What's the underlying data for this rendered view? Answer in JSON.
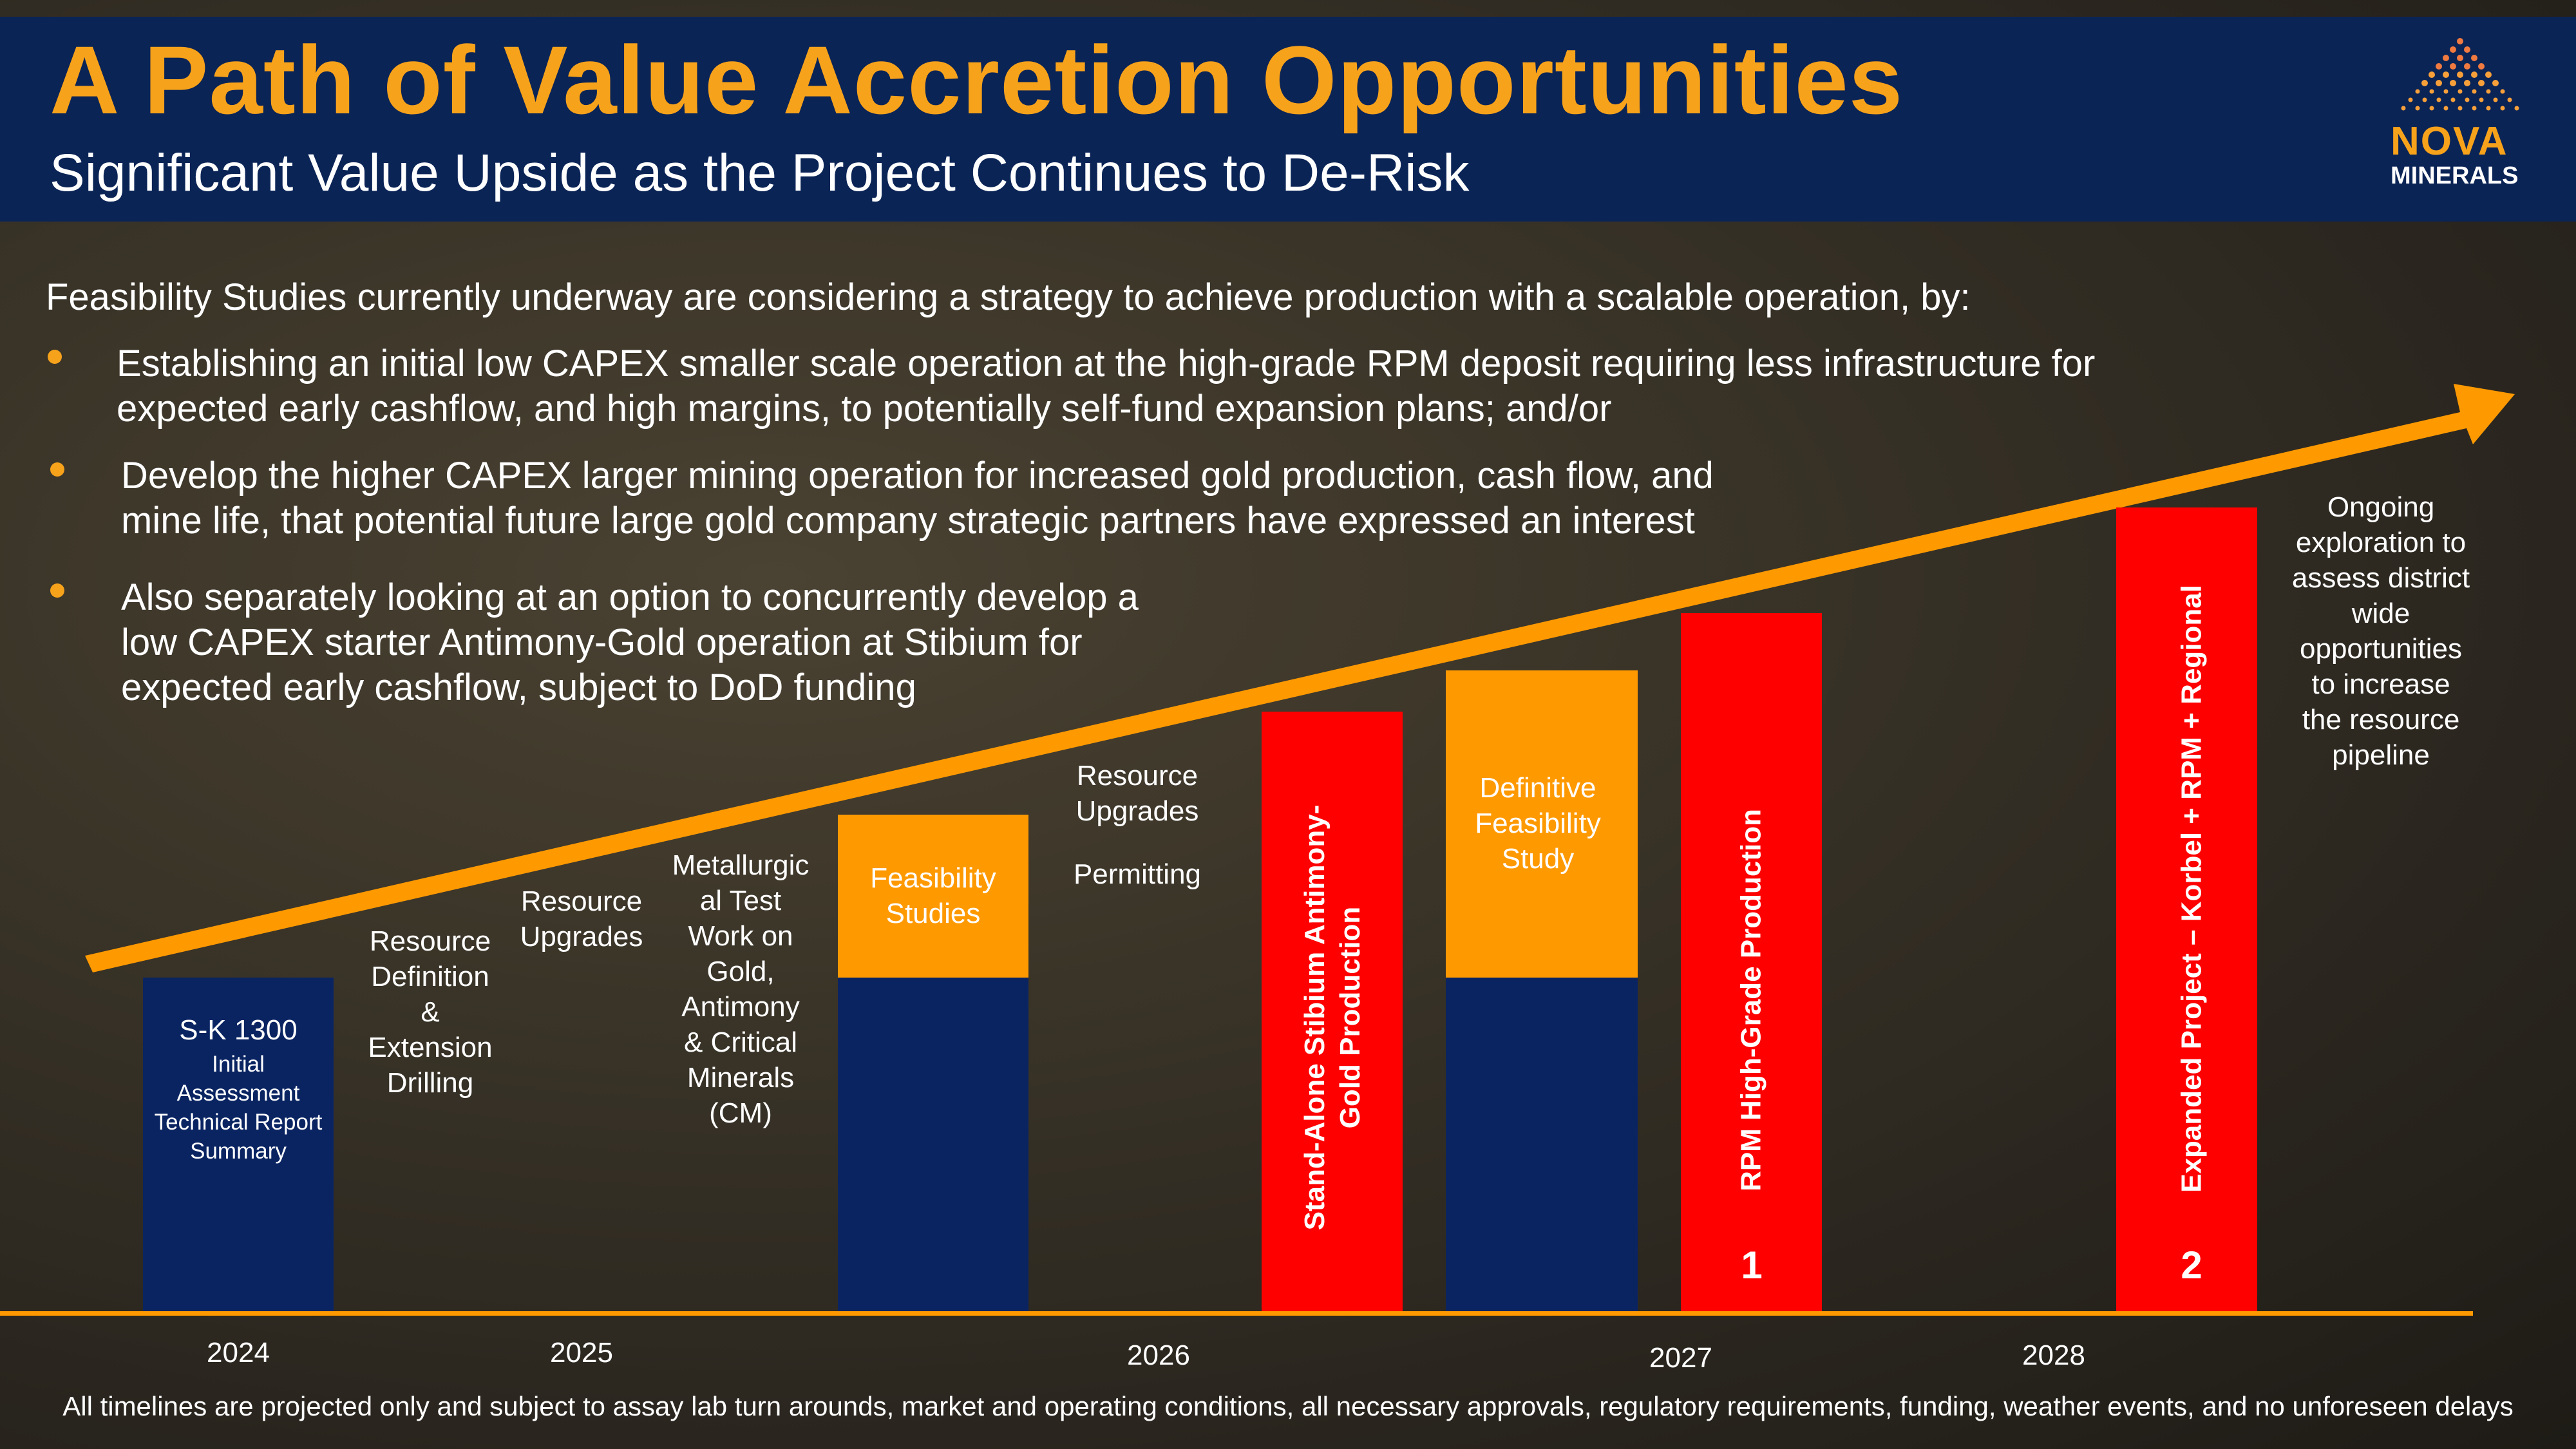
{
  "header": {
    "title": "A Path of Value Accretion Opportunities",
    "subtitle": "Significant Value Upside as the Project Continues to De-Risk"
  },
  "logo": {
    "word1": "NOVA",
    "word2": "MINERALS"
  },
  "intro": "Feasibility Studies currently underway are considering a strategy to achieve production with a scalable operation, by:",
  "bullets": [
    [
      "Establishing an initial low CAPEX smaller scale operation at the high-grade RPM deposit requiring less infrastructure for",
      "expected early cashflow, and high margins, to potentially self-fund expansion plans; and/or"
    ],
    [
      "Develop the higher CAPEX larger mining operation for increased gold production, cash flow, and",
      "mine life, that potential future large gold company strategic partners have expressed an interest"
    ],
    [
      "Also separately looking at an option to concurrently develop a",
      "low CAPEX starter Antimony-Gold operation at Stibium for",
      "expected early cashflow, subject to DoD funding"
    ]
  ],
  "timeline": {
    "sk1300": {
      "title": "S-K 1300",
      "lines": [
        "Initial",
        "Assessment",
        "Technical Report",
        "Summary"
      ]
    },
    "resource_definition": [
      "Resource",
      "Definition",
      "&",
      "Extension",
      "Drilling"
    ],
    "resource_upgrades_1": [
      "Resource",
      "Upgrades"
    ],
    "metallurgical": [
      "Metallurgic",
      "al Test",
      "Work on",
      "Gold,",
      "Antimony",
      "& Critical",
      "Minerals",
      "(CM)"
    ],
    "feasibility": [
      "Feasibility",
      "Studies"
    ],
    "resource_upgrades_2": [
      "Resource",
      "Upgrades"
    ],
    "permitting": "Permitting",
    "stibium": [
      "Stand-Alone Stibium Antimony-",
      "Gold Production"
    ],
    "dfs": [
      "Definitive",
      "Feasibility",
      "Study"
    ],
    "rpm": {
      "label": "RPM High-Grade Production",
      "number": "1"
    },
    "expanded": {
      "label": "Expanded Project – Korbel + RPM + Regional",
      "number": "2"
    },
    "ongoing": [
      "Ongoing",
      "exploration to",
      "assess district",
      "wide",
      "opportunities",
      "to increase",
      "the resource",
      "pipeline"
    ],
    "years": [
      "2024",
      "2025",
      "2026",
      "2027",
      "2028"
    ]
  },
  "footnote": "All timelines are projected only and subject to assay lab turn arounds, market and operating conditions, all necessary approvals, regulatory requirements, funding, weather events, and no unforeseen delays",
  "colors": {
    "navy": "#0b2456",
    "orange": "#f7a21b",
    "red": "#ff0000"
  }
}
